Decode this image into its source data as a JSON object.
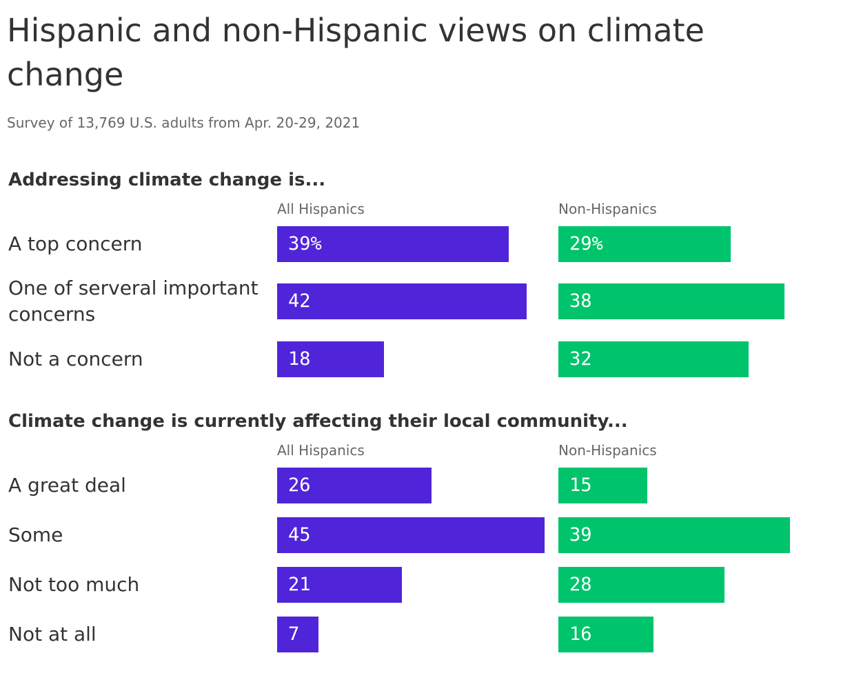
{
  "title": "Hispanic and non-Hispanic views on climate change",
  "subtitle": "Survey of 13,769 U.S. adults from Apr. 20-29, 2021",
  "chart_data": [
    {
      "type": "bar",
      "title": "Addressing climate change is...",
      "categories": [
        "A top concern",
        "One of serveral important concerns",
        "Not a concern"
      ],
      "series": [
        {
          "name": "All Hispanics",
          "color": "#5025d9",
          "values": [
            39,
            42,
            18
          ],
          "value_labels": [
            "39%",
            "42",
            "18"
          ]
        },
        {
          "name": "Non-Hispanics",
          "color": "#00c46b",
          "values": [
            29,
            38,
            32
          ],
          "value_labels": [
            "29%",
            "38",
            "32"
          ]
        }
      ]
    },
    {
      "type": "bar",
      "title": "Climate change is currently affecting their local community...",
      "categories": [
        "A great deal",
        "Some",
        "Not too much",
        "Not at all"
      ],
      "series": [
        {
          "name": "All Hispanics",
          "color": "#5025d9",
          "values": [
            26,
            45,
            21,
            7
          ]
        },
        {
          "name": "Non-Hispanics",
          "color": "#00c46b",
          "values": [
            15,
            39,
            28,
            16
          ]
        }
      ]
    }
  ]
}
